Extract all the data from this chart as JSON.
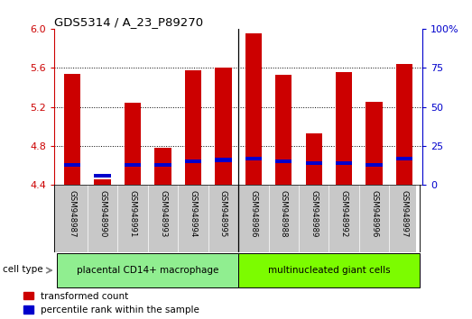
{
  "title": "GDS5314 / A_23_P89270",
  "samples": [
    "GSM948987",
    "GSM948990",
    "GSM948991",
    "GSM948993",
    "GSM948994",
    "GSM948995",
    "GSM948986",
    "GSM948988",
    "GSM948989",
    "GSM948992",
    "GSM948996",
    "GSM948997"
  ],
  "transformed_count": [
    5.54,
    4.46,
    5.24,
    4.78,
    5.57,
    5.6,
    5.95,
    5.53,
    4.93,
    5.56,
    5.25,
    5.64
  ],
  "percentile_rank": [
    13,
    6,
    13,
    13,
    15,
    16,
    17,
    15,
    14,
    14,
    13,
    17
  ],
  "groups": [
    {
      "label": "placental CD14+ macrophage",
      "start": 0,
      "end": 6,
      "color": "#90EE90"
    },
    {
      "label": "multinucleated giant cells",
      "start": 6,
      "end": 12,
      "color": "#7CFC00"
    }
  ],
  "group_divider": 6,
  "ylim_left": [
    4.4,
    6.0
  ],
  "ylim_right": [
    0,
    100
  ],
  "yticks_left": [
    4.4,
    4.8,
    5.2,
    5.6,
    6.0
  ],
  "yticks_right": [
    0,
    25,
    50,
    75,
    100
  ],
  "bar_color_red": "#CC0000",
  "bar_color_blue": "#0000CC",
  "bar_width": 0.55,
  "background_plot": "#FFFFFF",
  "tick_label_area_color": "#C8C8C8",
  "cell_type_label": "cell type",
  "legend_red": "transformed count",
  "legend_blue": "percentile rank within the sample",
  "left_axis_color": "#CC0000",
  "right_axis_color": "#0000CC"
}
